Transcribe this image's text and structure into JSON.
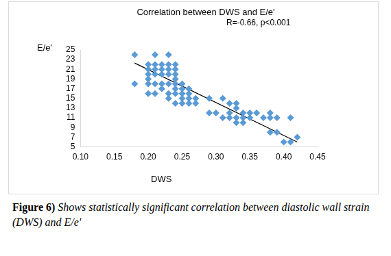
{
  "chart_data": {
    "type": "scatter",
    "title": "Correlation between DWS and E/e'",
    "annotation": "R=-0.66, p<0.001",
    "x_label": "DWS",
    "y_label": "E/e'",
    "caption_label": "Figure 6)",
    "caption": "Shows statistically significant correlation between diastolic wall strain (DWS) and E/e'",
    "x": [
      0.18,
      0.18,
      0.2,
      0.2,
      0.2,
      0.2,
      0.2,
      0.2,
      0.21,
      0.21,
      0.21,
      0.21,
      0.21,
      0.21,
      0.22,
      0.22,
      0.22,
      0.22,
      0.22,
      0.23,
      0.23,
      0.23,
      0.23,
      0.23,
      0.23,
      0.23,
      0.24,
      0.24,
      0.24,
      0.24,
      0.24,
      0.24,
      0.24,
      0.24,
      0.25,
      0.25,
      0.25,
      0.25,
      0.25,
      0.26,
      0.26,
      0.26,
      0.26,
      0.27,
      0.27,
      0.29,
      0.29,
      0.3,
      0.31,
      0.31,
      0.32,
      0.32,
      0.32,
      0.33,
      0.33,
      0.33,
      0.33,
      0.34,
      0.34,
      0.34,
      0.35,
      0.35,
      0.36,
      0.37,
      0.38,
      0.38,
      0.38,
      0.39,
      0.39,
      0.4,
      0.41,
      0.41,
      0.42
    ],
    "values": [
      24,
      18,
      22,
      21,
      20,
      19,
      18,
      16,
      24,
      22,
      21,
      20,
      18,
      16,
      22,
      21,
      20,
      18,
      17,
      24,
      22,
      21,
      20,
      18,
      16,
      15,
      22,
      21,
      20,
      19,
      18,
      17,
      16,
      14,
      18,
      17,
      16,
      15,
      14,
      17,
      16,
      15,
      14,
      15,
      14,
      15,
      12,
      12,
      15,
      11,
      14,
      12,
      11,
      14,
      13,
      11,
      10,
      12,
      11,
      10,
      12,
      11,
      12,
      11,
      12,
      11,
      8,
      11,
      8,
      6,
      11,
      6,
      7
    ],
    "color": "#5b9bd5",
    "marker": "diamond",
    "trendline": {
      "x": [
        0.18,
        0.42
      ],
      "y": [
        22.3,
        6
      ],
      "color": "#000000"
    },
    "xlim": [
      0.1,
      0.45
    ],
    "xticks": [
      {
        "value": 0.1,
        "label": "0.10"
      },
      {
        "value": 0.15,
        "label": "0.15"
      },
      {
        "value": 0.2,
        "label": "0.20"
      },
      {
        "value": 0.25,
        "label": "0.25"
      },
      {
        "value": 0.3,
        "label": "0.30"
      },
      {
        "value": 0.35,
        "label": "0.35"
      },
      {
        "value": 0.4,
        "label": "0.40"
      },
      {
        "value": 0.45,
        "label": "0.45"
      }
    ],
    "ylim": [
      5,
      25
    ],
    "yticks": [
      5,
      7,
      9,
      11,
      13,
      15,
      17,
      19,
      21,
      23,
      25
    ],
    "grid": false
  }
}
